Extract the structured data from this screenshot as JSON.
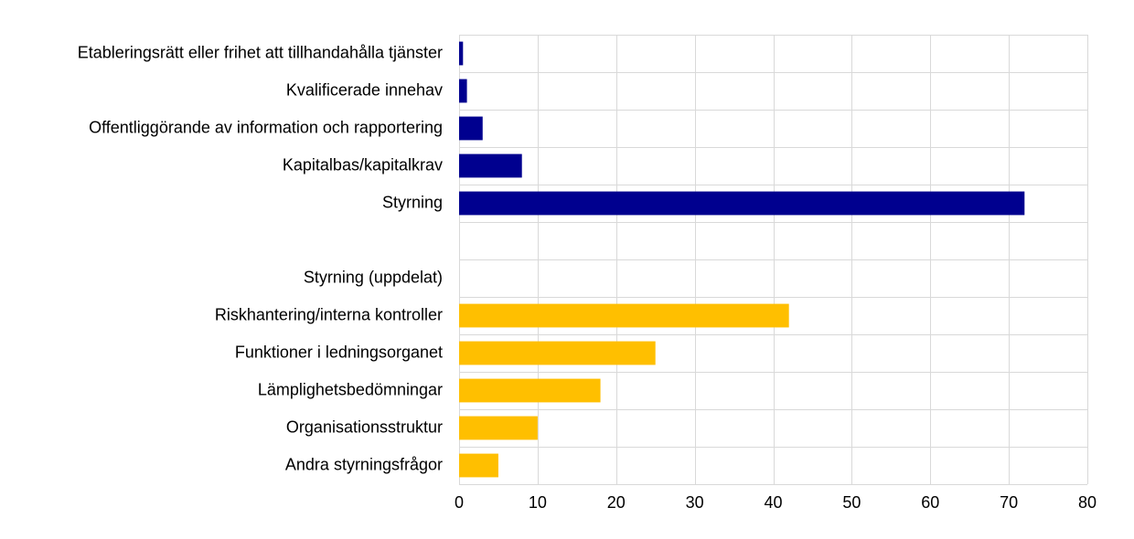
{
  "chart_data": {
    "type": "bar",
    "orientation": "horizontal",
    "categories": [
      "Etableringsrätt eller frihet att tillhandahålla tjänster",
      "Kvalificerade innehav",
      "Offentliggörande av information och rapportering",
      "Kapitalbas/kapitalkrav",
      "Styrning",
      "",
      "Styrning (uppdelat)",
      "Riskhantering/interna kontroller",
      "Funktioner i ledningsorganet",
      "Lämplighetsbedömningar",
      "Organisationsstruktur",
      "Andra styrningsfrågor"
    ],
    "values": [
      0.5,
      1,
      3,
      8,
      72,
      null,
      null,
      42,
      25,
      18,
      10,
      5
    ],
    "bar_colors": [
      "#00008f",
      "#00008f",
      "#00008f",
      "#00008f",
      "#00008f",
      null,
      null,
      "#ffbf00",
      "#ffbf00",
      "#ffbf00",
      "#ffbf00",
      "#ffbf00"
    ],
    "xlim": [
      0,
      80
    ],
    "xticks": [
      0,
      10,
      20,
      30,
      40,
      50,
      60,
      70,
      80
    ],
    "grid": true,
    "title": "",
    "xlabel": "",
    "ylabel": ""
  },
  "colors": {
    "primary_series": "#00008f",
    "secondary_series": "#ffbf00",
    "gridline": "#d9d9d9"
  }
}
